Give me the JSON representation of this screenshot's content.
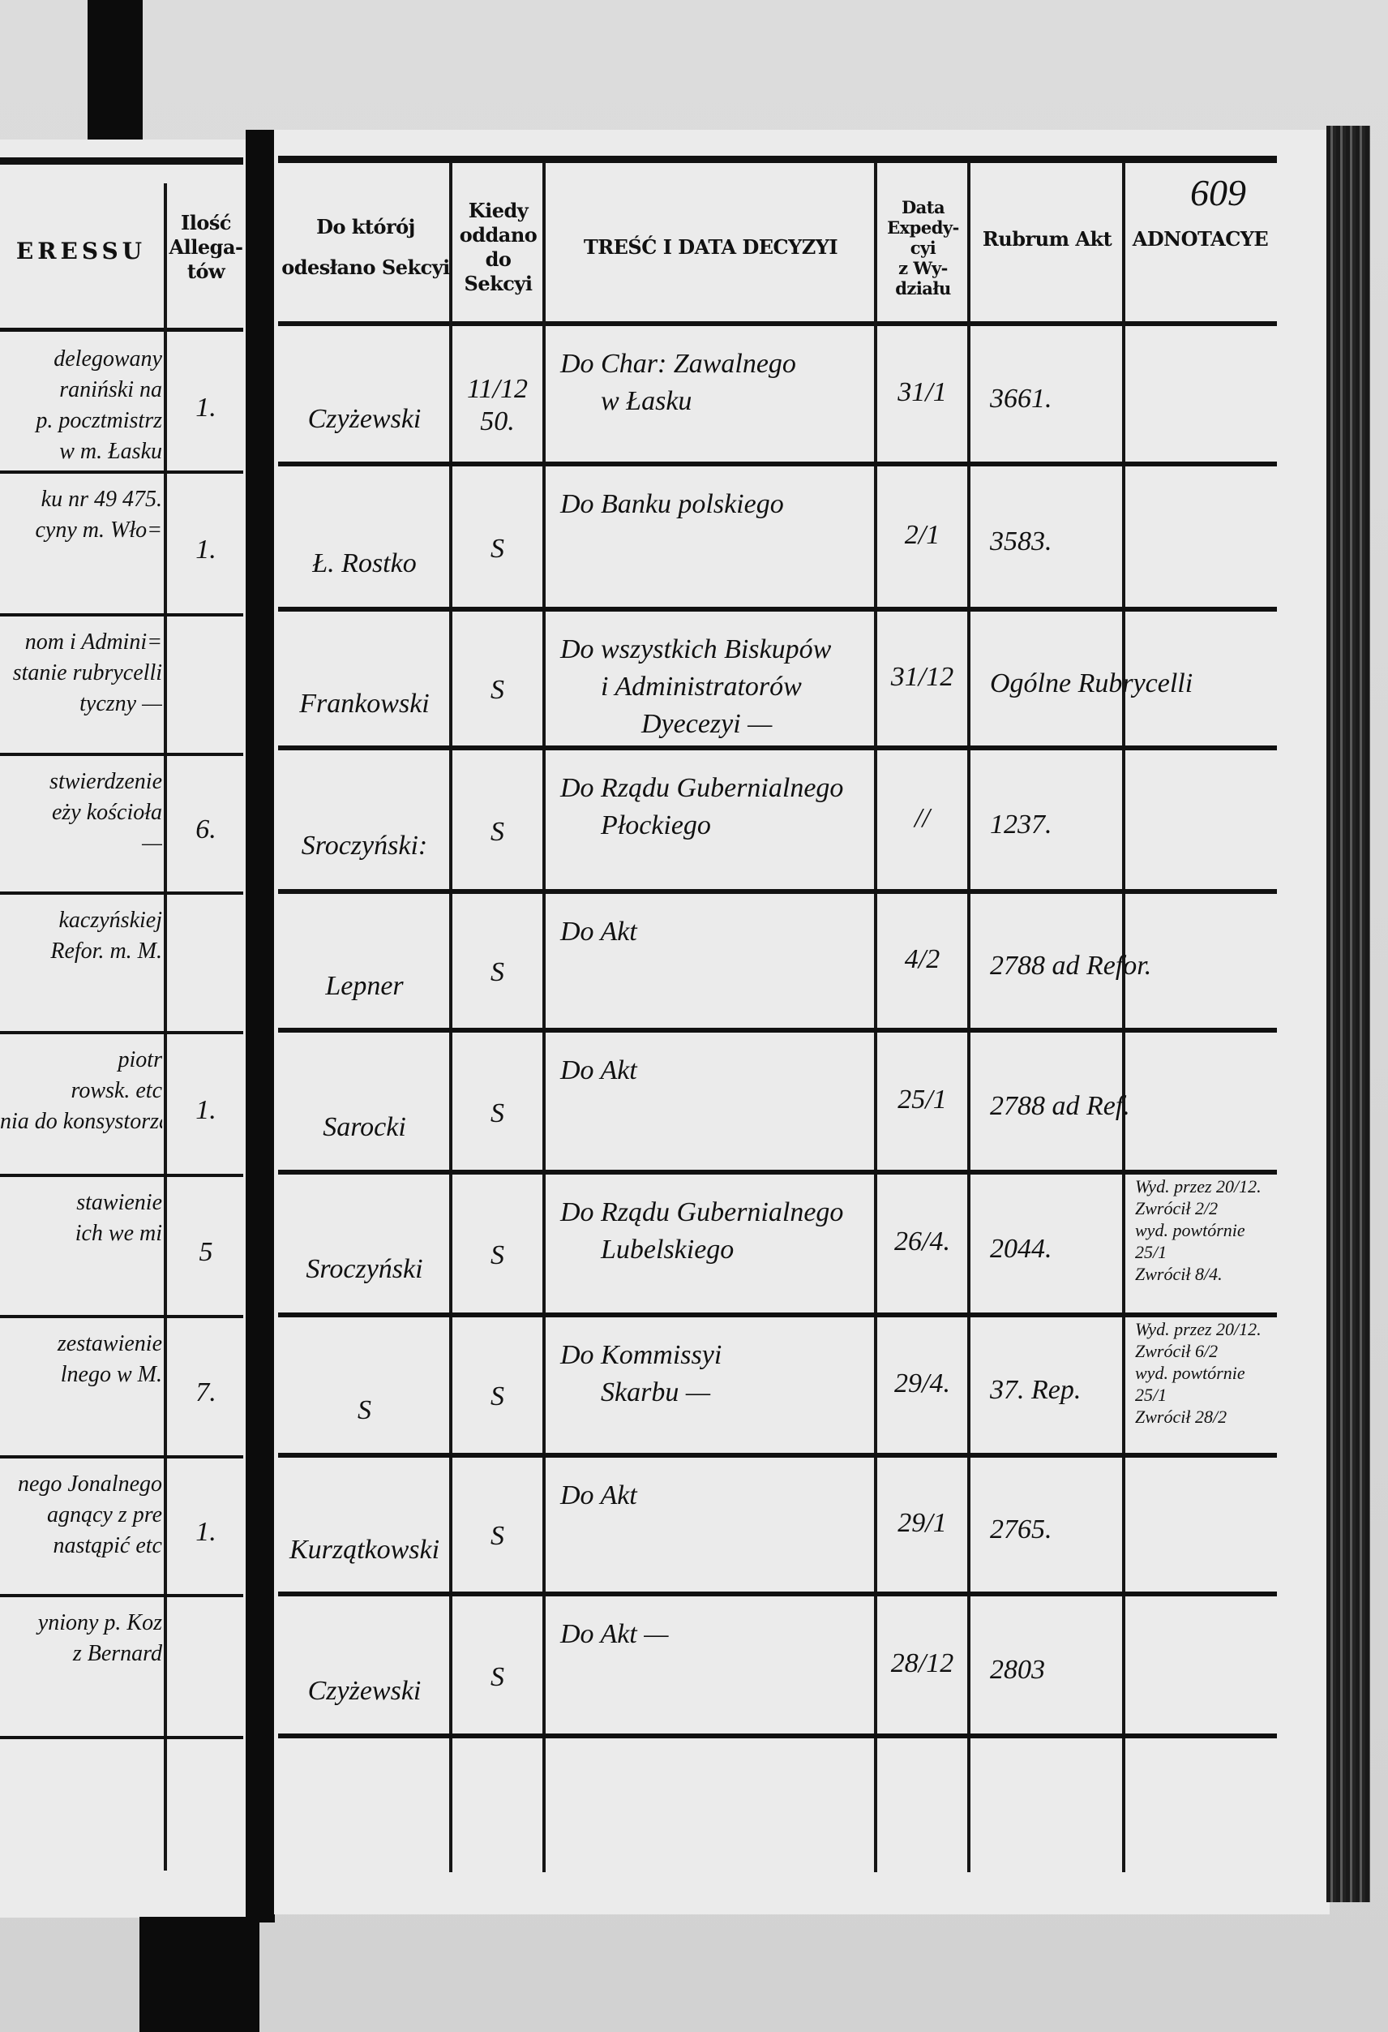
{
  "left_page": {
    "header": {
      "interest_fragment": "ERESSU",
      "attachments": [
        "Ilość",
        "Allega-",
        "tów"
      ]
    },
    "rows": [
      {
        "interest": [
          "delegowany",
          "raniński na",
          "p. pocztmistrz",
          "w m. Łasku"
        ],
        "attachments": "1."
      },
      {
        "interest": [
          "ku nr 49 475.",
          "cyny m. Wło="
        ],
        "attachments": "1."
      },
      {
        "interest": [
          "nom i Admini=",
          "stanie rubrycelli",
          "tyczny —"
        ],
        "attachments": ""
      },
      {
        "interest": [
          "stwierdzenie",
          "eży kościoła",
          "—"
        ],
        "attachments": "6."
      },
      {
        "interest": [
          "kaczyńskiej",
          "Refor. m. M."
        ],
        "attachments": ""
      },
      {
        "interest": [
          "piotr",
          "rowsk. etc",
          "nia do konsystorza"
        ],
        "attachments": "1."
      },
      {
        "interest": [
          "stawienie",
          "ich we mi"
        ],
        "attachments": "5"
      },
      {
        "interest": [
          "zestawienie",
          "lnego w M."
        ],
        "attachments": "7."
      },
      {
        "interest": [
          "nego Jonalnego",
          "agnący z pre",
          "nastąpić etc"
        ],
        "attachments": "1."
      },
      {
        "interest": [
          "yniony p. Koz",
          "z Bernard"
        ],
        "attachments": ""
      }
    ]
  },
  "right_page": {
    "page_number": "609",
    "headers": {
      "section": [
        "Do którój",
        "odesłano Sekcyi"
      ],
      "when_given": [
        "Kiedy",
        "oddano",
        "do",
        "Sekcyi"
      ],
      "decision": "TREŚĆ I DATA DECYZYI",
      "dispatch_date": [
        "Data",
        "Expedy-",
        "cyi",
        "z Wy-",
        "działu"
      ],
      "rubrum": "Rubrum Akt",
      "annotations": "ADNOTACYE"
    },
    "rows": [
      {
        "section": "Czyżewski",
        "when_given": "11/12 50.",
        "decision": [
          "Do Char: Zawalnego",
          "w Łasku"
        ],
        "dispatch_date": "31/1",
        "rubrum": "3661.",
        "annotations": []
      },
      {
        "section": "Ł. Rostko",
        "when_given": "S",
        "decision": [
          "Do Banku polskiego"
        ],
        "dispatch_date": "2/1",
        "rubrum": "3583.",
        "annotations": []
      },
      {
        "section": "Frankowski",
        "when_given": "S",
        "decision": [
          "Do wszystkich Biskupów",
          "i Administratorów",
          "Dyecezyi —"
        ],
        "dispatch_date": "31/12",
        "rubrum": "Ogólne Rubrycelli",
        "annotations": []
      },
      {
        "section": "Sroczyński:",
        "when_given": "S",
        "decision": [
          "Do Rządu Gubernialnego",
          "Płockiego"
        ],
        "dispatch_date": "//",
        "rubrum": "1237.",
        "annotations": []
      },
      {
        "section": "Lepner",
        "when_given": "S",
        "decision": [
          "Do Akt"
        ],
        "dispatch_date": "4/2",
        "rubrum": "2788 ad Refor.",
        "annotations": []
      },
      {
        "section": "Sarocki",
        "when_given": "S",
        "decision": [
          "Do Akt"
        ],
        "dispatch_date": "25/1",
        "rubrum": "2788 ad Ref.",
        "annotations": []
      },
      {
        "section": "Sroczyński",
        "when_given": "S",
        "decision": [
          "Do Rządu Gubernialnego",
          "Lubelskiego"
        ],
        "dispatch_date": "26/4.",
        "rubrum": "2044.",
        "annotations": [
          "Wyd. przez 20/12.",
          "Zwrócił 2/2",
          "wyd. powtórnie 25/1",
          "Zwrócił 8/4."
        ]
      },
      {
        "section": "S",
        "when_given": "S",
        "decision": [
          "Do Kommissyi",
          "Skarbu —"
        ],
        "dispatch_date": "29/4.",
        "rubrum": "37. Rep.",
        "annotations": [
          "Wyd. przez 20/12.",
          "Zwrócił 6/2",
          "wyd. powtórnie 25/1",
          "Zwrócił 28/2"
        ]
      },
      {
        "section": "Kurzątkowski",
        "when_given": "S",
        "decision": [
          "Do Akt"
        ],
        "dispatch_date": "29/1",
        "rubrum": "2765.",
        "annotations": []
      },
      {
        "section": "Czyżewski",
        "when_given": "S",
        "decision": [
          "Do Akt —"
        ],
        "dispatch_date": "28/12",
        "rubrum": "2803",
        "annotations": []
      },
      {
        "section": "",
        "when_given": "",
        "decision": [],
        "dispatch_date": "",
        "rubrum": "",
        "annotations": []
      }
    ]
  }
}
